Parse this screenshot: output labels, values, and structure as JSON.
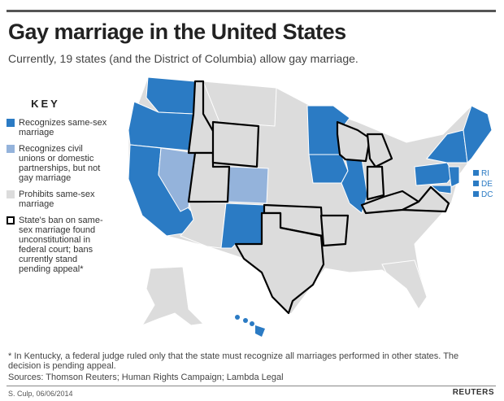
{
  "header": {
    "title": "Gay marriage in the United States",
    "subtitle": "Currently, 19 states (and the District of Columbia) allow gay marriage."
  },
  "legend": {
    "title": "KEY",
    "items": [
      {
        "label": "Recognizes same-sex marriage",
        "color": "#2b7bc4"
      },
      {
        "label": "Recognizes civil unions or domestic partnerships, but not gay marriage",
        "color": "#94b3db"
      },
      {
        "label": "Prohibits same-sex marriage",
        "color": "#dcdcdc"
      },
      {
        "label": "State's ban on same-sex marriage found unconstitutional in federal court; bans currently stand pending appeal*",
        "color": "#ffffff",
        "outline": "#000000"
      }
    ]
  },
  "map": {
    "small_states": [
      "RI",
      "DE",
      "DC"
    ]
  },
  "footer": {
    "note": "* In Kentucky, a federal judge ruled only that the state must recognize all marriages performed in other states. The decision is pending appeal.",
    "sources": "Sources: Thomson Reuters; Human Rights Campaign; Lambda Legal",
    "credit": "S. Culp, 06/06/2014",
    "brand": "REUTERS"
  }
}
